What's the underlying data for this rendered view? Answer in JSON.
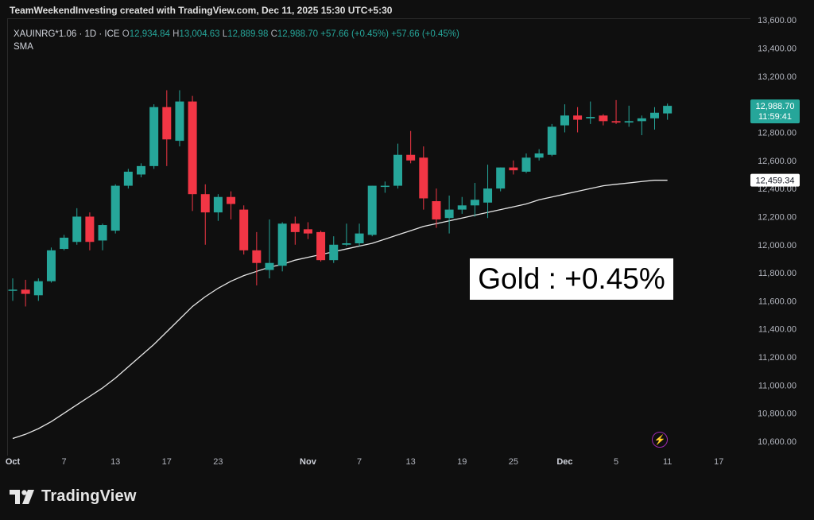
{
  "header": {
    "text": "TeamWeekendInvesting created with TradingView.com, Dec 11, 2025 15:30 UTC+5:30"
  },
  "legend": {
    "symbol": "XAUINRG*1.06 · 1D · ICE",
    "o_label": "O",
    "o_value": "12,934.84",
    "h_label": "H",
    "h_value": "13,004.63",
    "l_label": "L",
    "l_value": "12,889.98",
    "c_label": "C",
    "c_value": "12,988.70",
    "change": "+57.66 (+0.45%)",
    "change2": "+57.66 (+0.45%)",
    "sma_label": "SMA"
  },
  "annotation": {
    "text": "Gold : +0.45%"
  },
  "badges": {
    "last_price": "12,988.70",
    "countdown": "11:59:41",
    "sma_value": "12,459.34"
  },
  "footer": {
    "brand": "TradingView"
  },
  "icons": {
    "logo": "tradingview-logo-icon",
    "bolt": "lightning-icon"
  },
  "colors": {
    "up": "#26a69a",
    "down": "#f23645",
    "sma": "#e6e6e6",
    "background": "#0f0f0f",
    "bolt": "#9c27b0"
  },
  "chart_data": {
    "type": "candlestick",
    "ylim": [
      10500,
      13600
    ],
    "y_ticks": [
      "10,600.00",
      "10,800.00",
      "11,000.00",
      "11,200.00",
      "11,400.00",
      "11,600.00",
      "11,800.00",
      "12,000.00",
      "12,200.00",
      "12,400.00",
      "12,600.00",
      "12,800.00",
      "13,000.00",
      "13,200.00",
      "13,400.00",
      "13,600.00"
    ],
    "y_tick_values": [
      10600,
      10800,
      11000,
      11200,
      11400,
      11600,
      11800,
      12000,
      12200,
      12400,
      12600,
      12800,
      13000,
      13200,
      13400,
      13600
    ],
    "x_ticks": [
      {
        "label": "Oct",
        "index": 0,
        "bold": true
      },
      {
        "label": "7",
        "index": 4
      },
      {
        "label": "13",
        "index": 8
      },
      {
        "label": "17",
        "index": 12
      },
      {
        "label": "23",
        "index": 16
      },
      {
        "label": "Nov",
        "index": 23,
        "bold": true
      },
      {
        "label": "7",
        "index": 27
      },
      {
        "label": "13",
        "index": 31
      },
      {
        "label": "19",
        "index": 35
      },
      {
        "label": "25",
        "index": 39
      },
      {
        "label": "Dec",
        "index": 43,
        "bold": true
      },
      {
        "label": "5",
        "index": 47
      },
      {
        "label": "11",
        "index": 51
      },
      {
        "label": "17",
        "index": 55
      }
    ],
    "candles": [
      {
        "o": 11680,
        "h": 11760,
        "l": 11600,
        "c": 11680
      },
      {
        "o": 11680,
        "h": 11750,
        "l": 11560,
        "c": 11650
      },
      {
        "o": 11640,
        "h": 11760,
        "l": 11600,
        "c": 11740
      },
      {
        "o": 11740,
        "h": 11980,
        "l": 11730,
        "c": 11960
      },
      {
        "o": 11970,
        "h": 12070,
        "l": 11960,
        "c": 12050
      },
      {
        "o": 12020,
        "h": 12260,
        "l": 12000,
        "c": 12200
      },
      {
        "o": 12200,
        "h": 12230,
        "l": 11960,
        "c": 12020
      },
      {
        "o": 12030,
        "h": 12150,
        "l": 11960,
        "c": 12140
      },
      {
        "o": 12100,
        "h": 12430,
        "l": 12080,
        "c": 12420
      },
      {
        "o": 12420,
        "h": 12540,
        "l": 12400,
        "c": 12520
      },
      {
        "o": 12500,
        "h": 12580,
        "l": 12480,
        "c": 12560
      },
      {
        "o": 12560,
        "h": 13000,
        "l": 12540,
        "c": 12980
      },
      {
        "o": 12980,
        "h": 13100,
        "l": 12560,
        "c": 12750
      },
      {
        "o": 12740,
        "h": 13100,
        "l": 12700,
        "c": 13020
      },
      {
        "o": 13020,
        "h": 13060,
        "l": 12240,
        "c": 12360
      },
      {
        "o": 12360,
        "h": 12430,
        "l": 12000,
        "c": 12230
      },
      {
        "o": 12230,
        "h": 12360,
        "l": 12170,
        "c": 12340
      },
      {
        "o": 12340,
        "h": 12380,
        "l": 12180,
        "c": 12290
      },
      {
        "o": 12250,
        "h": 12280,
        "l": 11930,
        "c": 11960
      },
      {
        "o": 11960,
        "h": 12090,
        "l": 11710,
        "c": 11870
      },
      {
        "o": 11820,
        "h": 12180,
        "l": 11760,
        "c": 11870
      },
      {
        "o": 11850,
        "h": 12160,
        "l": 11810,
        "c": 12150
      },
      {
        "o": 12150,
        "h": 12200,
        "l": 12000,
        "c": 12090
      },
      {
        "o": 12110,
        "h": 12160,
        "l": 12040,
        "c": 12080
      },
      {
        "o": 12090,
        "h": 12100,
        "l": 11880,
        "c": 11890
      },
      {
        "o": 11890,
        "h": 12060,
        "l": 11870,
        "c": 12000
      },
      {
        "o": 12000,
        "h": 12150,
        "l": 11990,
        "c": 12010
      },
      {
        "o": 12010,
        "h": 12150,
        "l": 11990,
        "c": 12080
      },
      {
        "o": 12070,
        "h": 12420,
        "l": 12060,
        "c": 12420
      },
      {
        "o": 12420,
        "h": 12450,
        "l": 12370,
        "c": 12420
      },
      {
        "o": 12420,
        "h": 12720,
        "l": 12400,
        "c": 12640
      },
      {
        "o": 12640,
        "h": 12810,
        "l": 12580,
        "c": 12600
      },
      {
        "o": 12620,
        "h": 12700,
        "l": 12250,
        "c": 12330
      },
      {
        "o": 12310,
        "h": 12400,
        "l": 12120,
        "c": 12180
      },
      {
        "o": 12190,
        "h": 12350,
        "l": 12080,
        "c": 12250
      },
      {
        "o": 12250,
        "h": 12340,
        "l": 12220,
        "c": 12280
      },
      {
        "o": 12280,
        "h": 12440,
        "l": 12200,
        "c": 12320
      },
      {
        "o": 12300,
        "h": 12570,
        "l": 12190,
        "c": 12400
      },
      {
        "o": 12400,
        "h": 12550,
        "l": 12380,
        "c": 12550
      },
      {
        "o": 12550,
        "h": 12600,
        "l": 12500,
        "c": 12530
      },
      {
        "o": 12520,
        "h": 12650,
        "l": 12510,
        "c": 12620
      },
      {
        "o": 12620,
        "h": 12680,
        "l": 12600,
        "c": 12650
      },
      {
        "o": 12640,
        "h": 12860,
        "l": 12630,
        "c": 12840
      },
      {
        "o": 12850,
        "h": 13000,
        "l": 12800,
        "c": 12920
      },
      {
        "o": 12920,
        "h": 12980,
        "l": 12800,
        "c": 12890
      },
      {
        "o": 12900,
        "h": 13020,
        "l": 12860,
        "c": 12910
      },
      {
        "o": 12920,
        "h": 12930,
        "l": 12850,
        "c": 12880
      },
      {
        "o": 12880,
        "h": 13030,
        "l": 12860,
        "c": 12870
      },
      {
        "o": 12870,
        "h": 12990,
        "l": 12840,
        "c": 12880
      },
      {
        "o": 12880,
        "h": 12920,
        "l": 12780,
        "c": 12900
      },
      {
        "o": 12900,
        "h": 12980,
        "l": 12820,
        "c": 12940
      },
      {
        "o": 12935,
        "h": 13005,
        "l": 12890,
        "c": 12989
      }
    ],
    "sma": [
      10620,
      10650,
      10690,
      10740,
      10800,
      10860,
      10920,
      10980,
      11050,
      11130,
      11210,
      11290,
      11380,
      11470,
      11560,
      11630,
      11690,
      11740,
      11780,
      11810,
      11840,
      11860,
      11890,
      11910,
      11930,
      11950,
      11970,
      11990,
      12010,
      12040,
      12070,
      12100,
      12130,
      12150,
      12170,
      12190,
      12210,
      12230,
      12250,
      12270,
      12290,
      12320,
      12340,
      12360,
      12380,
      12400,
      12420,
      12430,
      12440,
      12450,
      12459,
      12459
    ]
  }
}
